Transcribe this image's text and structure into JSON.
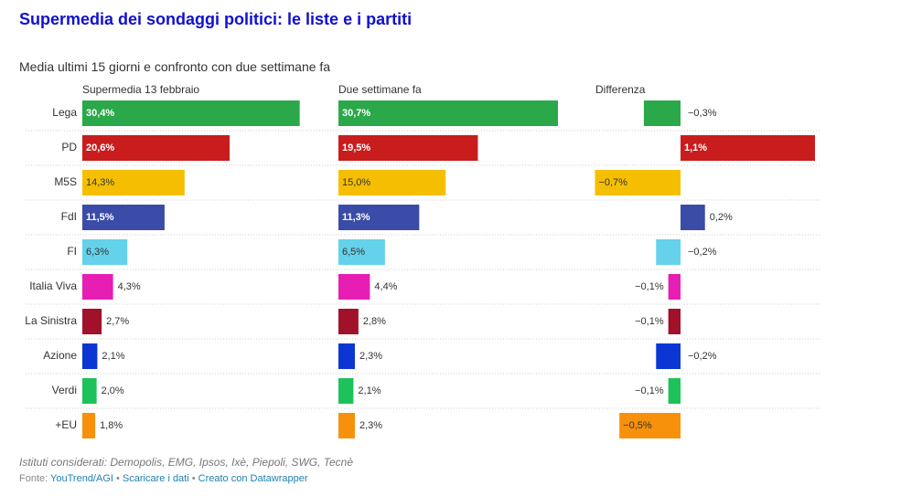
{
  "title": "Supermedia dei sondaggi politici: le liste e i partiti",
  "subtitle": "Media ultimi 15 giorni e confronto con due settimane fa",
  "notes": "Istituti considerati: Demopolis, EMG, Ipsos, Ixè, Piepoli, SWG, Tecnè",
  "footer": {
    "prefix": "Fonte: ",
    "source": "YouTrend/AGI",
    "separator": " • ",
    "download": "Scaricare i dati",
    "created": "Creato con Datawrapper"
  },
  "chart_data": {
    "type": "bar",
    "orientation": "horizontal",
    "categories": [
      "Lega",
      "PD",
      "M5S",
      "FdI",
      "FI",
      "Italia Viva",
      "La Sinistra",
      "Azione",
      "Verdi",
      "+EU"
    ],
    "colors": [
      "#2ba84a",
      "#c91d1d",
      "#f5bf00",
      "#3a4ba8",
      "#63d2ea",
      "#e61eb4",
      "#a1112a",
      "#0b36d4",
      "#1dc25a",
      "#f7900a"
    ],
    "series": [
      {
        "name": "Supermedia 13 febbraio",
        "values": [
          30.4,
          20.6,
          14.3,
          11.5,
          6.3,
          4.3,
          2.7,
          2.1,
          2.0,
          1.8
        ],
        "labels": [
          "30,4%",
          "20,6%",
          "14,3%",
          "11,5%",
          "6,3%",
          "4,3%",
          "2,7%",
          "2,1%",
          "2,0%",
          "1,8%"
        ]
      },
      {
        "name": "Due settimane fa",
        "values": [
          30.7,
          19.5,
          15.0,
          11.3,
          6.5,
          4.4,
          2.8,
          2.3,
          2.1,
          2.3
        ],
        "labels": [
          "30,7%",
          "19,5%",
          "15,0%",
          "11,3%",
          "6,5%",
          "4,4%",
          "2,8%",
          "2,3%",
          "2,1%",
          "2,3%"
        ]
      },
      {
        "name": "Differenza",
        "values": [
          -0.3,
          1.1,
          -0.7,
          0.2,
          -0.2,
          -0.1,
          -0.1,
          -0.2,
          -0.1,
          -0.5
        ],
        "labels": [
          "−0,3%",
          "1,1%",
          "−0,7%",
          "0,2%",
          "−0,2%",
          "−0,1%",
          "−0,1%",
          "−0,2%",
          "−0,1%",
          "−0,5%"
        ]
      }
    ],
    "xlim_share": [
      0,
      30.7
    ],
    "xlim_diff": [
      -0.7,
      1.1
    ],
    "grid": false,
    "row_separators": "dotted"
  }
}
